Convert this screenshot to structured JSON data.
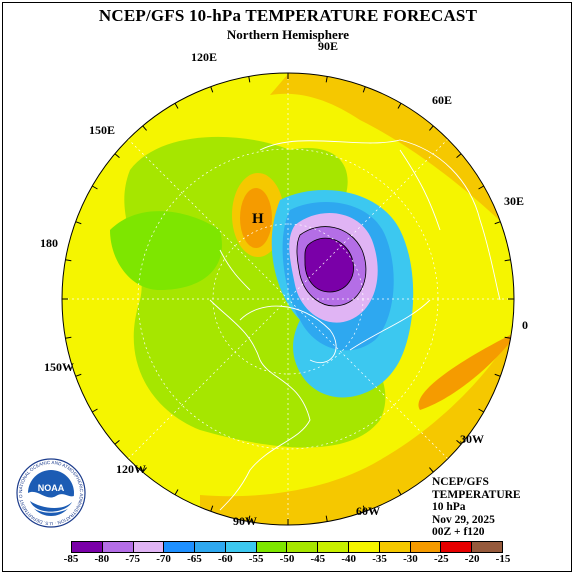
{
  "header": {
    "title": "NCEP/GFS 10-hPa TEMPERATURE FORECAST",
    "subtitle": "Northern Hemisphere"
  },
  "longitude_labels": [
    "90E",
    "120E",
    "60E",
    "150E",
    "30E",
    "180",
    "0",
    "150W",
    "30W",
    "120W",
    "90W",
    "60W"
  ],
  "map": {
    "high_marker": "H",
    "colors": {
      "background_fill": "#f5f500",
      "land_outline": "#ffffff",
      "grid_line": "#ffffff",
      "contour_line": "#000000"
    }
  },
  "info": {
    "line1": "NCEP/GFS",
    "line2": "TEMPERATURE",
    "line3": "10 hPa",
    "line4": "Nov 29, 2025",
    "line5": "00Z + f120"
  },
  "logo": {
    "center_text": "NOAA",
    "ring_text": "NATIONAL OCEANIC AND ATMOSPHERIC ADMINISTRATION · U.S. DEPARTMENT OF COMMERCE"
  },
  "colorbar": {
    "labels": [
      "-85",
      "-80",
      "-75",
      "-70",
      "-65",
      "-60",
      "-55",
      "-50",
      "-45",
      "-40",
      "-35",
      "-30",
      "-25",
      "-20",
      "-15"
    ],
    "colors": [
      "#7a00a8",
      "#b46ee6",
      "#e0b4f4",
      "#1e90ff",
      "#2ea8f0",
      "#3cc8f0",
      "#7ee600",
      "#a6e600",
      "#c8f000",
      "#f5f500",
      "#f5c800",
      "#f59b00",
      "#e60000",
      "#965a3c"
    ]
  }
}
